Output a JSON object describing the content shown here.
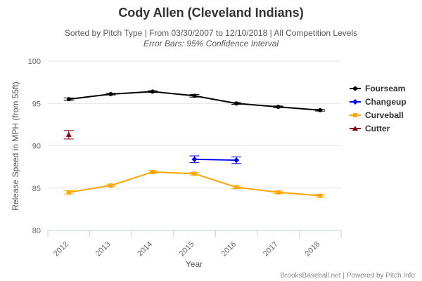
{
  "chart_data": {
    "type": "line",
    "title": "Cody Allen (Cleveland Indians)",
    "subtitle": "Sorted by Pitch Type | From 03/30/2007 to 12/10/2018 | All Competition Levels",
    "subtitle2": "Error Bars: 95% Confidence Interval",
    "xlabel": "Year",
    "ylabel": "Release Speed in MPH (from 55ft)",
    "categories": [
      "2012",
      "2013",
      "2014",
      "2015",
      "2016",
      "2017",
      "2018"
    ],
    "ylim": [
      80,
      100
    ],
    "yticks": [
      80,
      85,
      90,
      95,
      100
    ],
    "grid": "horizontal",
    "legend_position": "right",
    "series": [
      {
        "name": "Fourseam",
        "color": "#000000",
        "marker": "circle",
        "values": [
          95.5,
          96.1,
          96.4,
          95.9,
          95.0,
          94.6,
          94.2
        ],
        "errors": [
          0.15,
          0.1,
          0.1,
          0.15,
          0.1,
          0.1,
          0.1
        ]
      },
      {
        "name": "Changeup",
        "color": "#0000ff",
        "marker": "diamond",
        "values": [
          null,
          null,
          null,
          88.4,
          88.3,
          null,
          null
        ],
        "errors": [
          0,
          0,
          0,
          0.4,
          0.4,
          0,
          0
        ]
      },
      {
        "name": "Curveball",
        "color": "#ffa500",
        "marker": "square",
        "values": [
          84.5,
          85.3,
          86.9,
          86.7,
          85.1,
          84.5,
          84.1
        ],
        "errors": [
          0.2,
          0.1,
          0.15,
          0.15,
          0.15,
          0.15,
          0.15
        ]
      },
      {
        "name": "Cutter",
        "color": "#8b0000",
        "marker": "triangle",
        "values": [
          91.3,
          null,
          null,
          null,
          null,
          null,
          null
        ],
        "errors": [
          0.5,
          0,
          0,
          0,
          0,
          0,
          0
        ]
      }
    ]
  },
  "credits": "BrooksBaseball.net | Powered by Pitch Info"
}
